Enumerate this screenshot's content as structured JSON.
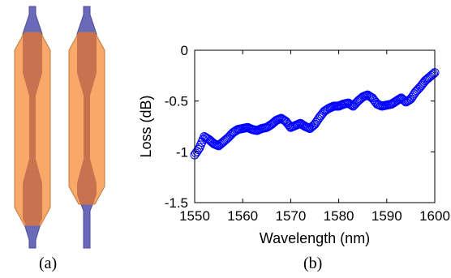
{
  "panels": {
    "a": {
      "caption": "(a)"
    },
    "b": {
      "caption": "(b)"
    }
  },
  "colors": {
    "waveguide": "#6a6ab8",
    "waveguide_edge": "#4a4a98",
    "cladding": "#f8a868",
    "cladding_edge": "#c07840",
    "overlap": "#c4704e",
    "marker": "#0000ff"
  },
  "chart_data": {
    "type": "scatter",
    "marker": "open-circle",
    "xlabel": "Wavelength (nm)",
    "ylabel": "Loss (dB)",
    "xlim": [
      1550,
      1600
    ],
    "ylim": [
      -1.5,
      0
    ],
    "xticks": [
      "1550",
      "1560",
      "1570",
      "1580",
      "1590",
      "1600"
    ],
    "yticks": [
      "0",
      "-0.5",
      "-1",
      "-1.5"
    ],
    "xtick_values": [
      1550,
      1560,
      1570,
      1580,
      1590,
      1600
    ],
    "ytick_values": [
      0,
      -0.5,
      -1,
      -1.5
    ],
    "grid": false,
    "series": [
      {
        "x": [
          1550,
          1551,
          1552,
          1553,
          1554,
          1555,
          1556,
          1557,
          1558,
          1559,
          1560,
          1561,
          1562,
          1563,
          1564,
          1565,
          1566,
          1567,
          1568,
          1569,
          1570,
          1571,
          1572,
          1573,
          1574,
          1575,
          1576,
          1577,
          1578,
          1579,
          1580,
          1581,
          1582,
          1583,
          1584,
          1585,
          1586,
          1587,
          1588,
          1589,
          1590,
          1591,
          1592,
          1593,
          1594,
          1595,
          1596,
          1597,
          1598,
          1599,
          1600
        ],
        "y": [
          -1.03,
          -0.96,
          -0.85,
          -0.88,
          -0.92,
          -0.94,
          -0.9,
          -0.86,
          -0.81,
          -0.78,
          -0.77,
          -0.76,
          -0.78,
          -0.79,
          -0.77,
          -0.76,
          -0.73,
          -0.69,
          -0.67,
          -0.7,
          -0.76,
          -0.74,
          -0.72,
          -0.75,
          -0.77,
          -0.73,
          -0.66,
          -0.6,
          -0.57,
          -0.55,
          -0.55,
          -0.53,
          -0.52,
          -0.55,
          -0.5,
          -0.46,
          -0.44,
          -0.47,
          -0.53,
          -0.55,
          -0.54,
          -0.53,
          -0.5,
          -0.47,
          -0.51,
          -0.48,
          -0.41,
          -0.36,
          -0.3,
          -0.26,
          -0.22
        ]
      }
    ]
  }
}
